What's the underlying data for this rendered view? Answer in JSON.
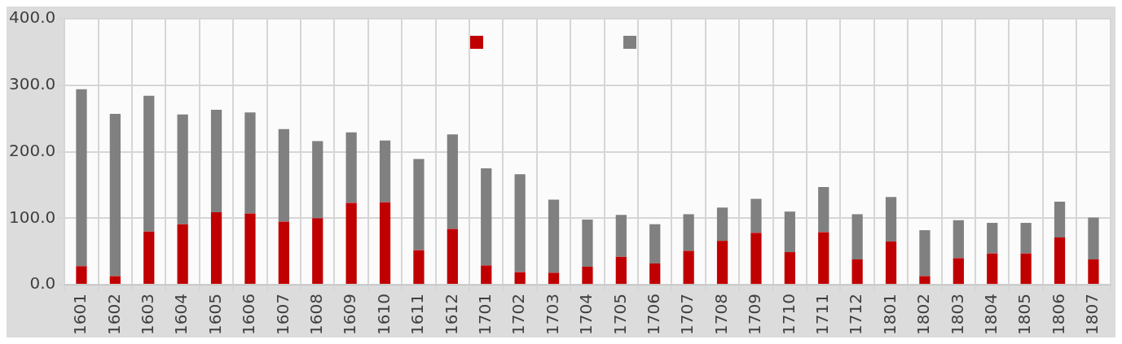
{
  "chart_data": {
    "type": "bar",
    "stacked": true,
    "categories": [
      "1601",
      "1602",
      "1603",
      "1604",
      "1605",
      "1606",
      "1607",
      "1608",
      "1609",
      "1610",
      "1611",
      "1612",
      "1701",
      "1702",
      "1703",
      "1704",
      "1705",
      "1706",
      "1707",
      "1708",
      "1709",
      "1710",
      "1711",
      "1712",
      "1801",
      "1802",
      "1803",
      "1804",
      "1805",
      "1806",
      "1807"
    ],
    "series": [
      {
        "color": "#c00000",
        "values": [
          28,
          13,
          80,
          91,
          109,
          107,
          95,
          100,
          123,
          124,
          52,
          84,
          29,
          19,
          18,
          27,
          42,
          32,
          51,
          66,
          78,
          49,
          79,
          38,
          65,
          13,
          40,
          47,
          47,
          71,
          38
        ]
      },
      {
        "color": "#808080",
        "values": [
          266,
          244,
          204,
          165,
          154,
          152,
          139,
          116,
          106,
          93,
          137,
          142,
          146,
          147,
          110,
          71,
          63,
          59,
          55,
          50,
          51,
          61,
          68,
          68,
          67,
          69,
          57,
          46,
          46,
          54,
          63
        ]
      }
    ],
    "ylim": [
      0,
      400
    ],
    "yticks": [
      {
        "value": 0,
        "label": "0.0"
      },
      {
        "value": 100,
        "label": "100.0"
      },
      {
        "value": 200,
        "label": "200.0"
      },
      {
        "value": 300,
        "label": "300.0"
      },
      {
        "value": 400,
        "label": "400.0"
      }
    ],
    "grid": true
  }
}
